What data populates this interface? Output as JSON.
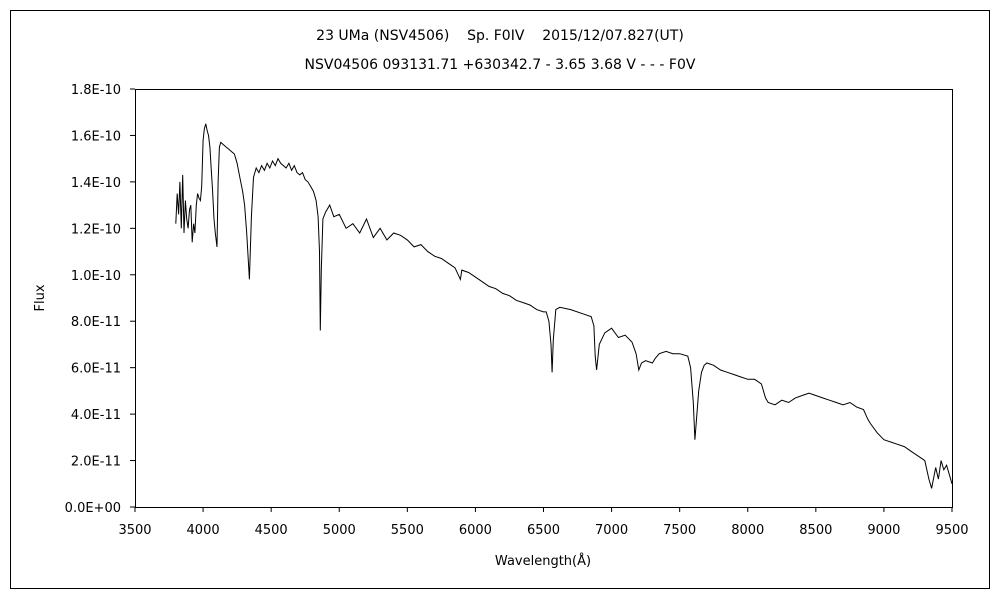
{
  "chart_data": {
    "type": "line",
    "title": "23 UMa (NSV4506)    Sp. F0IV    2015/12/07.827(UT)",
    "subtitle": "NSV04506 093131.71 +630342.7 - 3.65 3.68 V - - - F0V",
    "xlabel": "Wavelength(Å)",
    "ylabel": "Flux",
    "xlim": [
      3500,
      9500
    ],
    "ylim": [
      0,
      1.8e-10
    ],
    "grid": false,
    "legend": "none",
    "x_ticks": [
      "3500",
      "4000",
      "4500",
      "5000",
      "5500",
      "6000",
      "6500",
      "7000",
      "7500",
      "8000",
      "8500",
      "9000",
      "9500"
    ],
    "y_ticks": [
      "0.0E+00",
      "2.0E-11",
      "4.0E-11",
      "6.0E-11",
      "8.0E-11",
      "1.0E-10",
      "1.2E-10",
      "1.4E-10",
      "1.6E-10",
      "1.8E-10"
    ],
    "series": [
      {
        "color": "#000000",
        "x": [
          3800,
          3810,
          3820,
          3830,
          3840,
          3850,
          3860,
          3870,
          3880,
          3890,
          3900,
          3910,
          3920,
          3930,
          3940,
          3950,
          3960,
          3970,
          3980,
          3990,
          4000,
          4010,
          4020,
          4030,
          4040,
          4050,
          4060,
          4070,
          4080,
          4090,
          4102,
          4110,
          4120,
          4130,
          4150,
          4170,
          4190,
          4210,
          4230,
          4250,
          4270,
          4290,
          4305,
          4320,
          4340,
          4355,
          4370,
          4390,
          4410,
          4430,
          4450,
          4470,
          4490,
          4510,
          4530,
          4550,
          4570,
          4590,
          4610,
          4630,
          4650,
          4670,
          4690,
          4710,
          4730,
          4750,
          4770,
          4790,
          4810,
          4830,
          4845,
          4855,
          4861,
          4868,
          4880,
          4900,
          4930,
          4960,
          5000,
          5050,
          5100,
          5150,
          5200,
          5250,
          5300,
          5350,
          5400,
          5450,
          5500,
          5550,
          5600,
          5650,
          5700,
          5750,
          5800,
          5850,
          5890,
          5900,
          5950,
          6000,
          6050,
          6100,
          6150,
          6200,
          6250,
          6300,
          6350,
          6400,
          6450,
          6500,
          6520,
          6540,
          6555,
          6563,
          6572,
          6590,
          6620,
          6700,
          6800,
          6850,
          6870,
          6880,
          6890,
          6910,
          6950,
          7000,
          7050,
          7100,
          7150,
          7180,
          7200,
          7220,
          7250,
          7300,
          7320,
          7350,
          7400,
          7450,
          7500,
          7560,
          7580,
          7600,
          7612,
          7620,
          7640,
          7660,
          7680,
          7700,
          7750,
          7800,
          7850,
          7900,
          7950,
          8000,
          8050,
          8100,
          8130,
          8150,
          8200,
          8250,
          8300,
          8350,
          8400,
          8450,
          8500,
          8550,
          8600,
          8650,
          8700,
          8750,
          8800,
          8850,
          8880,
          8900,
          8950,
          9000,
          9050,
          9100,
          9150,
          9200,
          9250,
          9300,
          9330,
          9350,
          9380,
          9400,
          9420,
          9440,
          9460,
          9480,
          9500
        ],
        "y": [
          1.22e-10,
          1.35e-10,
          1.26e-10,
          1.4e-10,
          1.2e-10,
          1.43e-10,
          1.18e-10,
          1.32e-10,
          1.24e-10,
          1.2e-10,
          1.28e-10,
          1.3e-10,
          1.14e-10,
          1.22e-10,
          1.18e-10,
          1.3e-10,
          1.35e-10,
          1.33e-10,
          1.32e-10,
          1.38e-10,
          1.58e-10,
          1.63e-10,
          1.65e-10,
          1.62e-10,
          1.6e-10,
          1.55e-10,
          1.45e-10,
          1.36e-10,
          1.24e-10,
          1.18e-10,
          1.12e-10,
          1.4e-10,
          1.55e-10,
          1.57e-10,
          1.56e-10,
          1.55e-10,
          1.54e-10,
          1.53e-10,
          1.52e-10,
          1.48e-10,
          1.42e-10,
          1.36e-10,
          1.3e-10,
          1.18e-10,
          9.8e-11,
          1.25e-10,
          1.42e-10,
          1.46e-10,
          1.44e-10,
          1.47e-10,
          1.45e-10,
          1.48e-10,
          1.46e-10,
          1.49e-10,
          1.47e-10,
          1.5e-10,
          1.48e-10,
          1.47e-10,
          1.46e-10,
          1.48e-10,
          1.45e-10,
          1.47e-10,
          1.44e-10,
          1.43e-10,
          1.44e-10,
          1.41e-10,
          1.4e-10,
          1.38e-10,
          1.36e-10,
          1.32e-10,
          1.25e-10,
          1.1e-10,
          7.6e-11,
          1.02e-10,
          1.24e-10,
          1.27e-10,
          1.3e-10,
          1.25e-10,
          1.26e-10,
          1.2e-10,
          1.22e-10,
          1.18e-10,
          1.24e-10,
          1.16e-10,
          1.2e-10,
          1.15e-10,
          1.18e-10,
          1.17e-10,
          1.15e-10,
          1.12e-10,
          1.13e-10,
          1.1e-10,
          1.08e-10,
          1.07e-10,
          1.05e-10,
          1.03e-10,
          9.8e-11,
          1.02e-10,
          1.01e-10,
          9.9e-11,
          9.7e-11,
          9.5e-11,
          9.4e-11,
          9.2e-11,
          9.1e-11,
          8.9e-11,
          8.8e-11,
          8.7e-11,
          8.5e-11,
          8.4e-11,
          8.4e-11,
          8e-11,
          7e-11,
          5.8e-11,
          7.2e-11,
          8.5e-11,
          8.6e-11,
          8.5e-11,
          8.3e-11,
          8.2e-11,
          7.8e-11,
          6.5e-11,
          5.9e-11,
          7e-11,
          7.5e-11,
          7.7e-11,
          7.3e-11,
          7.4e-11,
          7.1e-11,
          6.6e-11,
          5.9e-11,
          6.2e-11,
          6.3e-11,
          6.2e-11,
          6.4e-11,
          6.6e-11,
          6.7e-11,
          6.6e-11,
          6.6e-11,
          6.5e-11,
          6e-11,
          4.5e-11,
          2.9e-11,
          3.5e-11,
          5e-11,
          5.8e-11,
          6.1e-11,
          6.2e-11,
          6.1e-11,
          5.9e-11,
          5.8e-11,
          5.7e-11,
          5.6e-11,
          5.5e-11,
          5.5e-11,
          5.3e-11,
          4.7e-11,
          4.5e-11,
          4.4e-11,
          4.6e-11,
          4.5e-11,
          4.7e-11,
          4.8e-11,
          4.9e-11,
          4.8e-11,
          4.7e-11,
          4.6e-11,
          4.5e-11,
          4.4e-11,
          4.5e-11,
          4.3e-11,
          4.2e-11,
          3.8e-11,
          3.6e-11,
          3.2e-11,
          2.9e-11,
          2.8e-11,
          2.7e-11,
          2.6e-11,
          2.4e-11,
          2.2e-11,
          2e-11,
          1.2e-11,
          8e-12,
          1.7e-11,
          1.2e-11,
          2e-11,
          1.6e-11,
          1.8e-11,
          1.4e-11,
          1e-11
        ]
      }
    ]
  }
}
